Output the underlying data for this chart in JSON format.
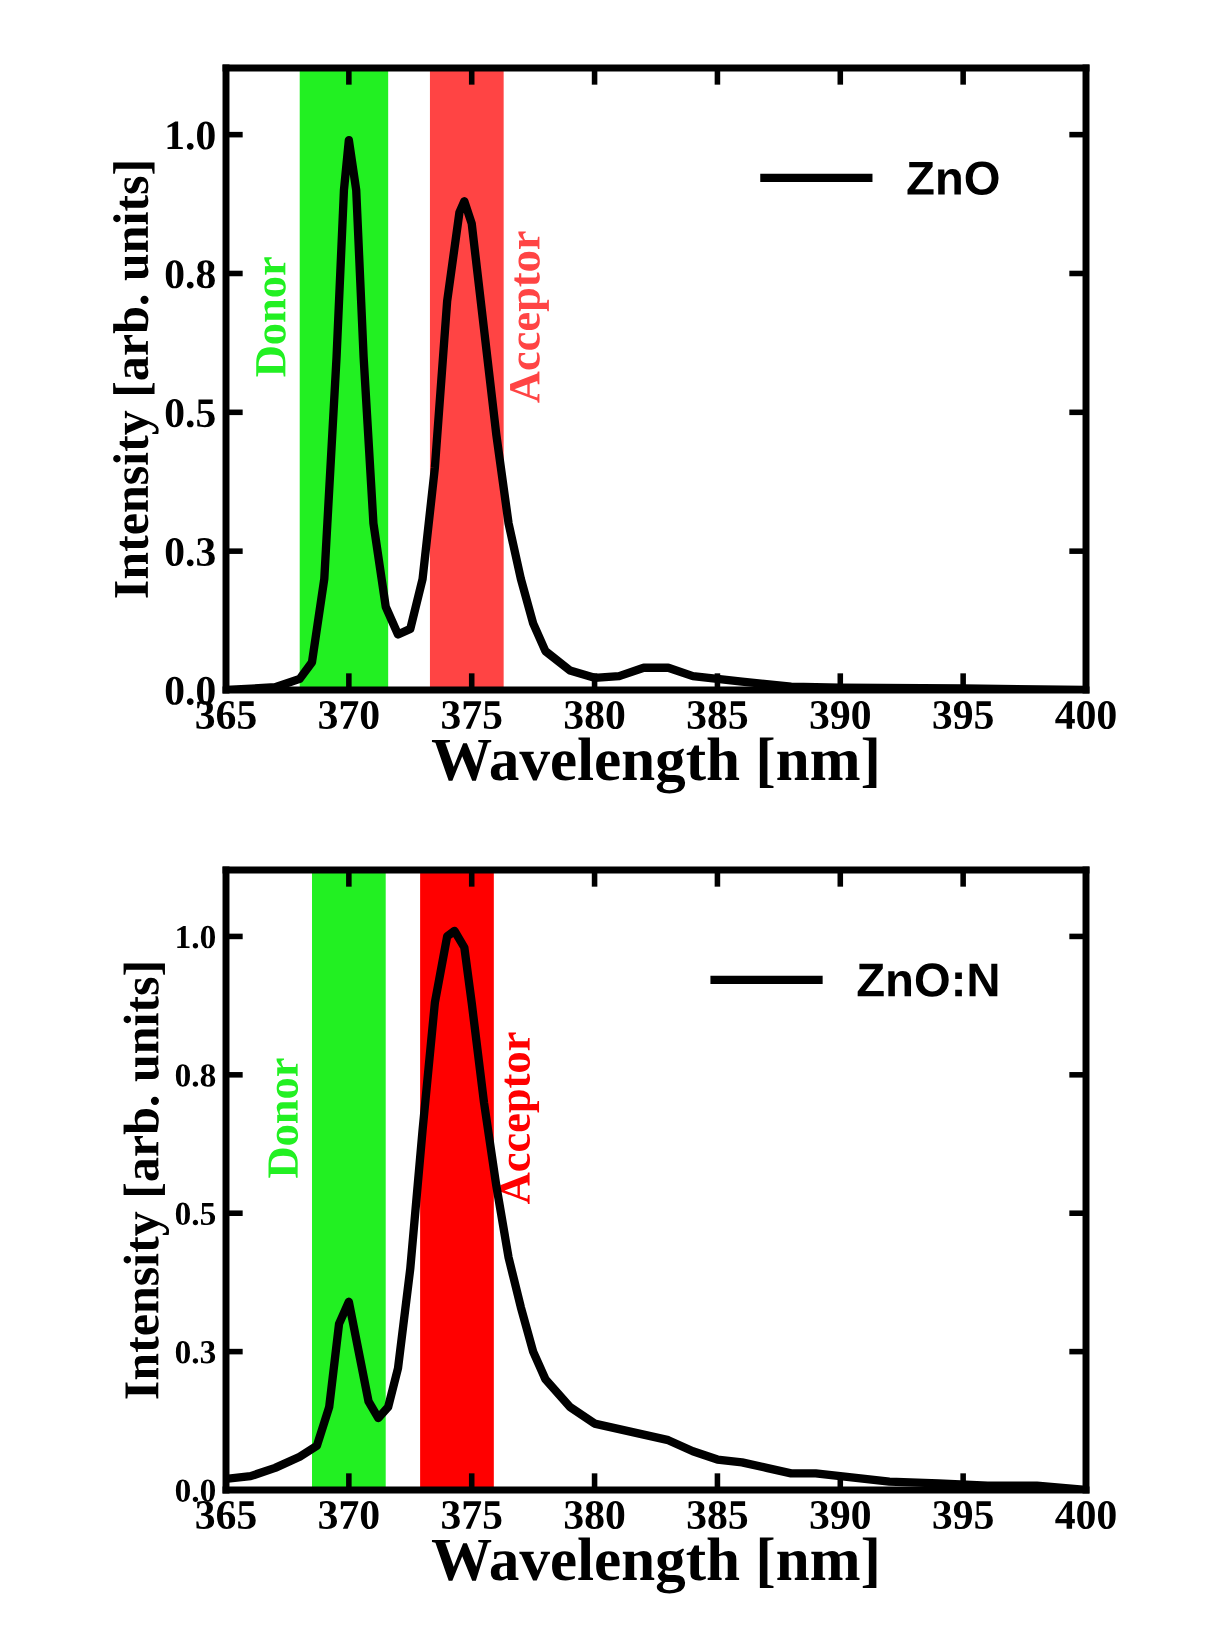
{
  "chart_data": [
    {
      "type": "line",
      "xlabel": "Wavelength [nm]",
      "ylabel": "Intensity [arb. units]",
      "xlim": [
        365,
        400
      ],
      "xticks": [
        365,
        370,
        375,
        380,
        385,
        390,
        395,
        400
      ],
      "ylim": [
        0,
        1.12
      ],
      "yticks": [
        {
          "value": 0,
          "label": "0.0"
        },
        {
          "value": 0.25,
          "label": "0.3"
        },
        {
          "value": 0.5,
          "label": "0.5"
        },
        {
          "value": 0.75,
          "label": "0.8"
        },
        {
          "value": 1.0,
          "label": "1.0"
        }
      ],
      "legend": "top right",
      "grid": false,
      "bands": [
        {
          "axis": "x",
          "from": 368.0,
          "to": 371.6,
          "label": "Donor",
          "color": "#22f022"
        },
        {
          "axis": "x",
          "from": 373.3,
          "to": 376.3,
          "label": "Acceptor",
          "color": "#ff4444"
        }
      ],
      "series": [
        {
          "name": "ZnO",
          "color": "#000000",
          "x": [
            365,
            367,
            368,
            368.5,
            369,
            369.5,
            369.8,
            370,
            370.3,
            370.6,
            371,
            371.5,
            372,
            372.5,
            373,
            373.5,
            374,
            374.5,
            374.7,
            375,
            375.5,
            376,
            376.5,
            377,
            377.5,
            378,
            379,
            380,
            381,
            382,
            383,
            384,
            386,
            388,
            390,
            395,
            400
          ],
          "values": [
            0.0,
            0.005,
            0.02,
            0.05,
            0.2,
            0.6,
            0.9,
            0.99,
            0.9,
            0.6,
            0.3,
            0.15,
            0.1,
            0.11,
            0.2,
            0.4,
            0.7,
            0.86,
            0.88,
            0.84,
            0.65,
            0.46,
            0.3,
            0.2,
            0.12,
            0.07,
            0.035,
            0.022,
            0.025,
            0.04,
            0.04,
            0.025,
            0.015,
            0.006,
            0.004,
            0.003,
            0.0
          ]
        }
      ]
    },
    {
      "type": "line",
      "xlabel": "Wavelength [nm]",
      "ylabel": "Intensity [arb. units]",
      "xlim": [
        365,
        400
      ],
      "xticks": [
        365,
        370,
        375,
        380,
        385,
        390,
        395,
        400
      ],
      "ylim": [
        0,
        1.12
      ],
      "yticks": [
        {
          "value": 0,
          "label": "0.0"
        },
        {
          "value": 0.25,
          "label": "0.3"
        },
        {
          "value": 0.5,
          "label": "0.5"
        },
        {
          "value": 0.75,
          "label": "0.8"
        },
        {
          "value": 1.0,
          "label": "1.0"
        }
      ],
      "legend": "top right",
      "grid": false,
      "bands": [
        {
          "axis": "x",
          "from": 368.5,
          "to": 371.5,
          "label": "Donor",
          "color": "#22f022"
        },
        {
          "axis": "x",
          "from": 372.9,
          "to": 375.9,
          "label": "Acceptor",
          "color": "#ff0000"
        }
      ],
      "series": [
        {
          "name": "ZnO:N",
          "color": "#000000",
          "x": [
            365,
            366,
            367,
            368,
            368.7,
            369.2,
            369.6,
            370,
            370.4,
            370.8,
            371.2,
            371.6,
            372,
            372.5,
            373,
            373.5,
            374,
            374.3,
            374.7,
            375,
            375.5,
            376,
            376.5,
            377,
            377.5,
            378,
            379,
            380,
            381,
            382,
            383,
            384,
            385,
            386,
            387,
            388,
            389,
            390,
            392,
            394,
            396,
            398,
            400
          ],
          "values": [
            0.02,
            0.025,
            0.04,
            0.06,
            0.08,
            0.15,
            0.3,
            0.34,
            0.25,
            0.16,
            0.13,
            0.15,
            0.22,
            0.4,
            0.65,
            0.88,
            1.0,
            1.01,
            0.98,
            0.88,
            0.7,
            0.55,
            0.42,
            0.33,
            0.25,
            0.2,
            0.15,
            0.12,
            0.11,
            0.1,
            0.09,
            0.07,
            0.055,
            0.05,
            0.04,
            0.03,
            0.03,
            0.025,
            0.015,
            0.012,
            0.008,
            0.008,
            0.0
          ]
        }
      ]
    }
  ]
}
